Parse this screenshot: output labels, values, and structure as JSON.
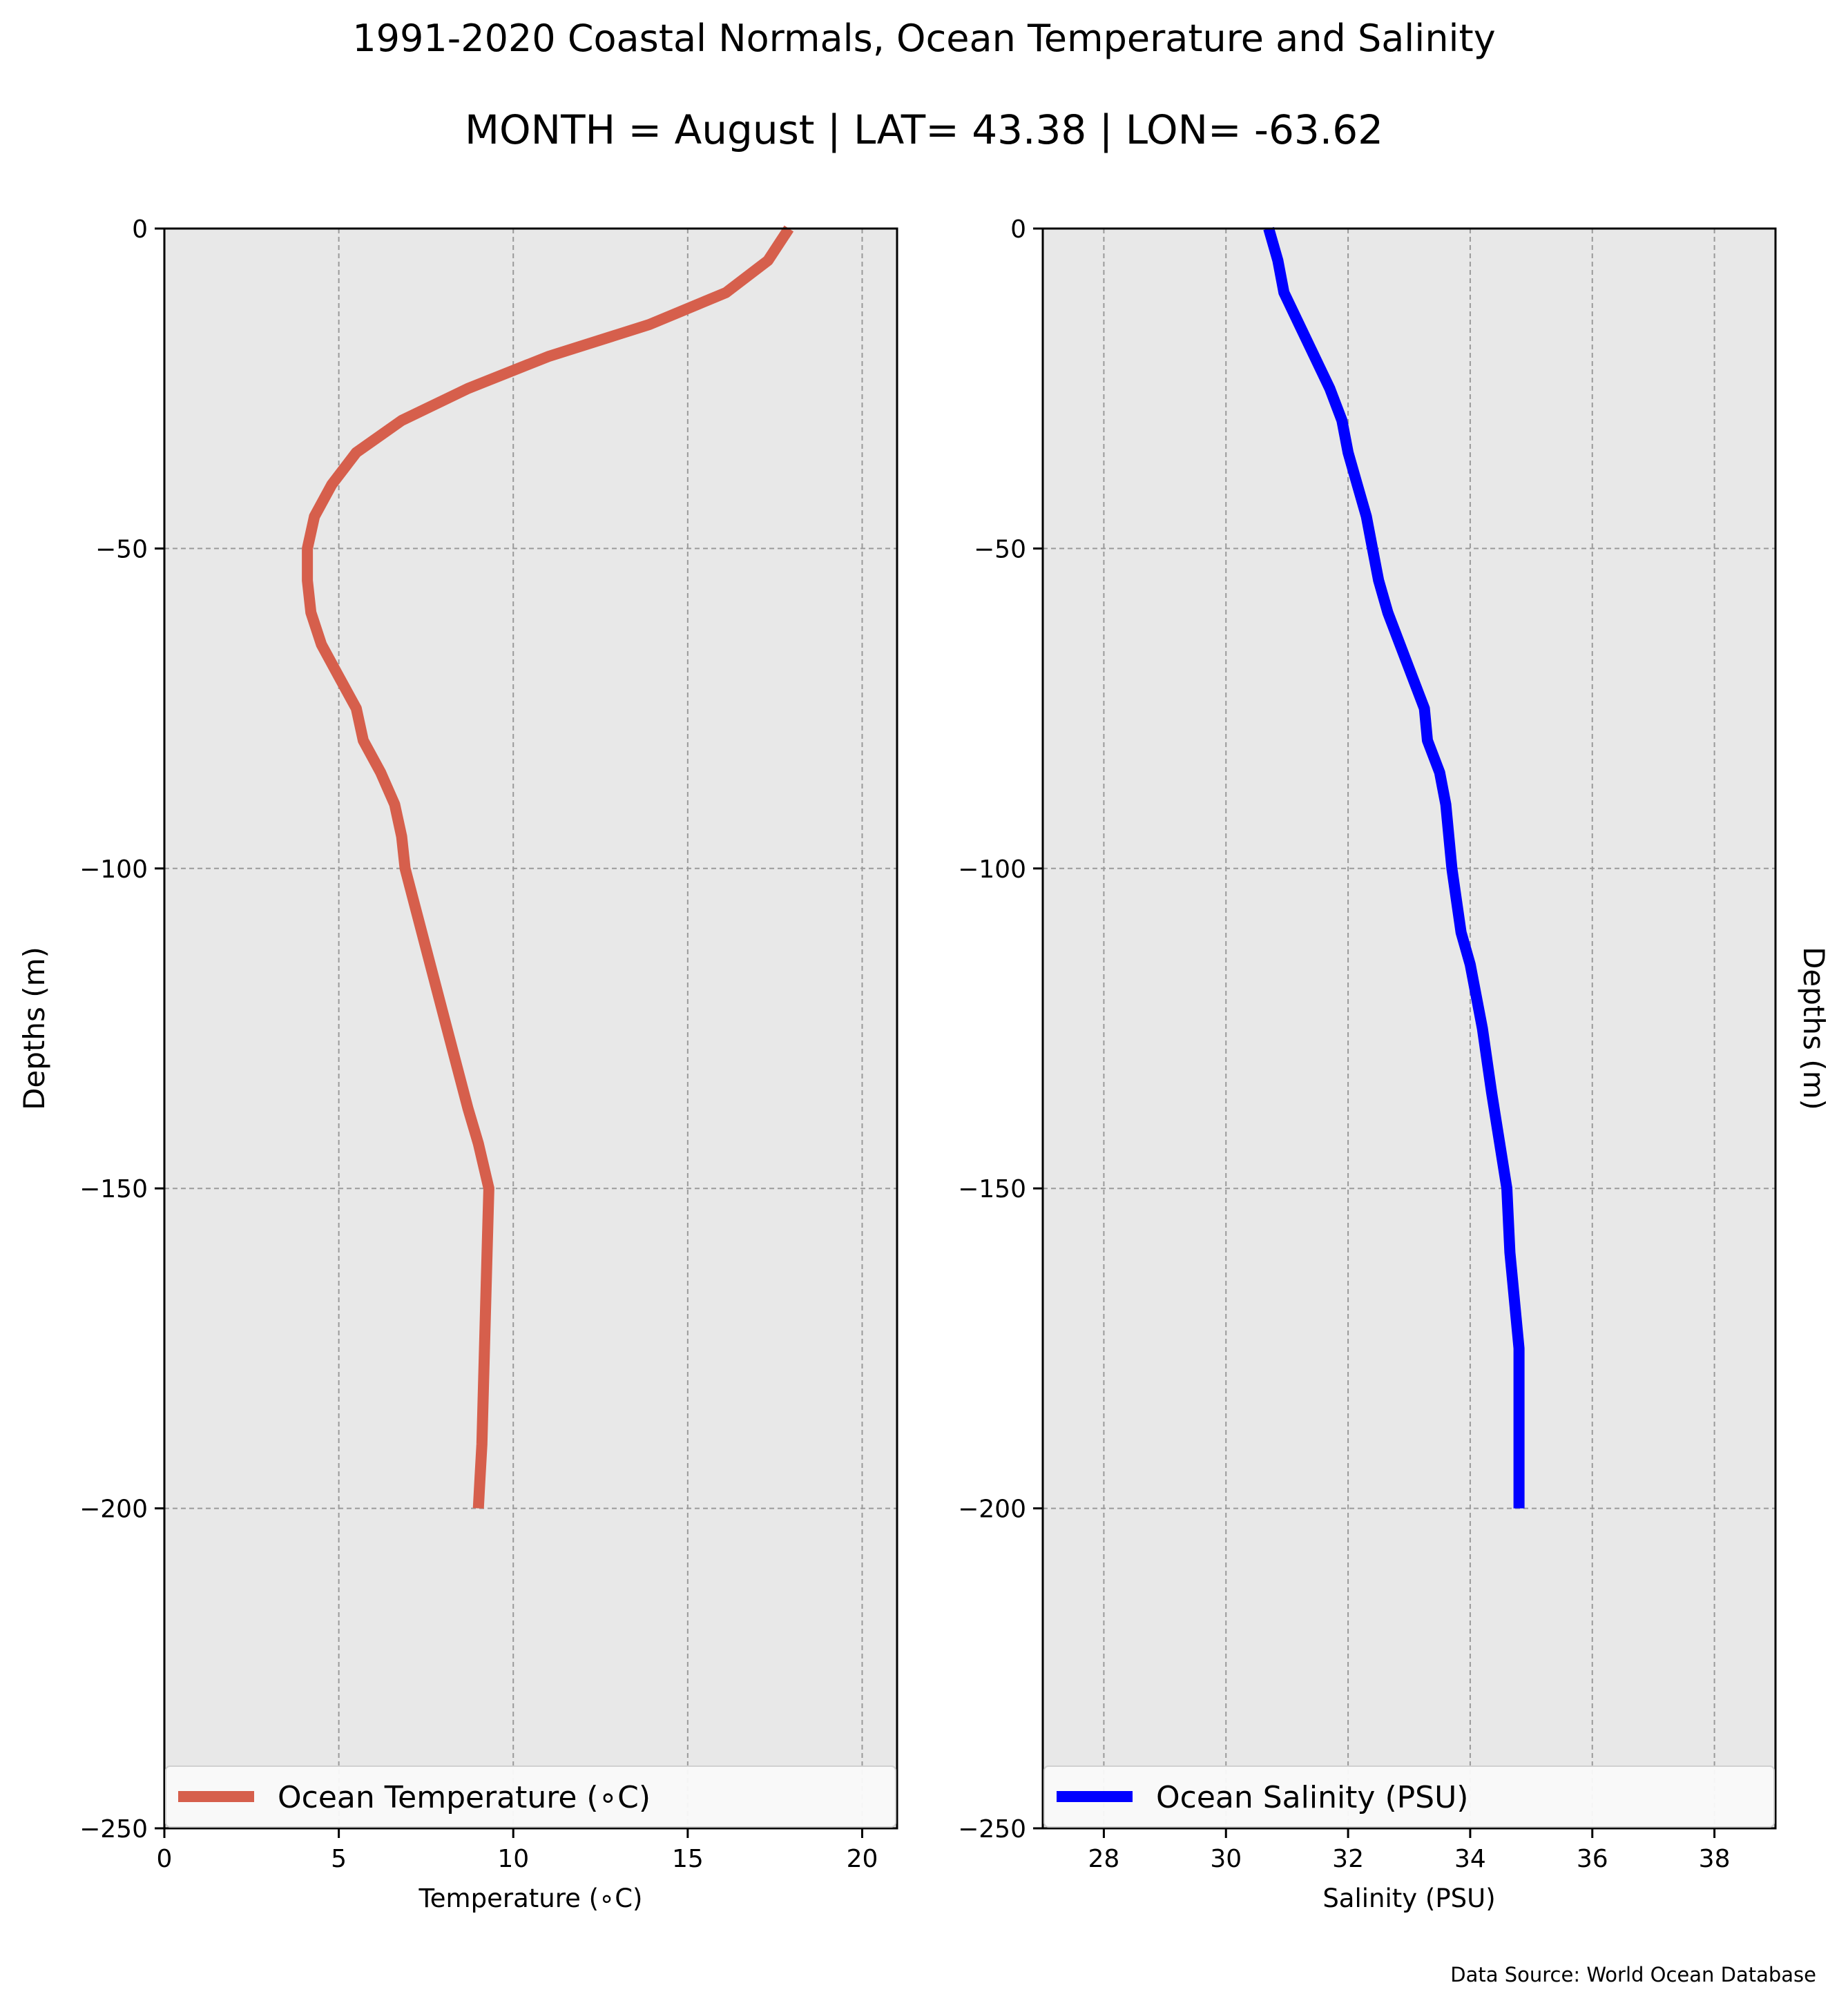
{
  "figure": {
    "title_line1": "1991-2020 Coastal Normals, Ocean Temperature and Salinity",
    "title_line2": "MONTH = August | LAT= 43.38 | LON= -63.62",
    "source": "Data Source: World Ocean Database"
  },
  "chart_data": [
    {
      "type": "line",
      "title": "",
      "xlabel": "Temperature ($^\\circ$C)",
      "xlabel_display": "Temperature (∘C)",
      "ylabel": "Depths (m)",
      "xlim": [
        0,
        21
      ],
      "ylim": [
        -250,
        0
      ],
      "xticks": [
        0,
        5,
        10,
        15,
        20
      ],
      "yticks": [
        0,
        -50,
        -100,
        -150,
        -200,
        -250
      ],
      "grid": true,
      "legend": "lower center",
      "series": [
        {
          "name": "Ocean Temperature ($^\\circ$C)",
          "name_display": "Ocean Temperature (∘C)",
          "color": "#d65f4c",
          "x": [
            17.9,
            17.3,
            16.1,
            13.9,
            11.0,
            8.7,
            6.8,
            5.5,
            4.8,
            4.3,
            4.1,
            4.1,
            4.2,
            4.5,
            5.0,
            5.5,
            5.7,
            6.2,
            6.6,
            6.8,
            6.9,
            7.5,
            8.1,
            8.7,
            9.0,
            9.3,
            9.25,
            9.2,
            9.15,
            9.1,
            9.05,
            9.0
          ],
          "y": [
            0,
            -5,
            -10,
            -15,
            -20,
            -25,
            -30,
            -35,
            -40,
            -45,
            -50,
            -55,
            -60,
            -65,
            -70,
            -75,
            -80,
            -85,
            -90,
            -95,
            -100,
            -112.5,
            -125,
            -137.5,
            -143,
            -150,
            -160,
            -170,
            -180,
            -190,
            -195,
            -200
          ]
        }
      ]
    },
    {
      "type": "line",
      "title": "",
      "xlabel": "Salinity (PSU)",
      "ylabel": "Depths (m)",
      "xlim": [
        27,
        39
      ],
      "ylim": [
        -250,
        0
      ],
      "xticks": [
        28,
        30,
        32,
        34,
        36,
        38
      ],
      "yticks": [
        0,
        -50,
        -100,
        -150,
        -200,
        -250
      ],
      "grid": true,
      "legend": "lower center",
      "series": [
        {
          "name": "Ocean Salinity (PSU)",
          "color": "#0000ff",
          "x": [
            30.7,
            30.85,
            30.95,
            31.2,
            31.45,
            31.7,
            31.9,
            32.0,
            32.15,
            32.3,
            32.4,
            32.5,
            32.65,
            32.85,
            33.05,
            33.25,
            33.3,
            33.5,
            33.6,
            33.65,
            33.7,
            33.85,
            34.0,
            34.2,
            34.35,
            34.6,
            34.65,
            34.7,
            34.75,
            34.8,
            34.8,
            34.8,
            34.8,
            34.8,
            34.8
          ],
          "y": [
            0,
            -5,
            -10,
            -15,
            -20,
            -25,
            -30,
            -35,
            -40,
            -45,
            -50,
            -55,
            -60,
            -65,
            -70,
            -75,
            -80,
            -85,
            -90,
            -95,
            -100,
            -110,
            -115,
            -125,
            -135,
            -150,
            -160,
            -165,
            -170,
            -175,
            -180,
            -185,
            -190,
            -195,
            -200
          ]
        }
      ]
    }
  ]
}
